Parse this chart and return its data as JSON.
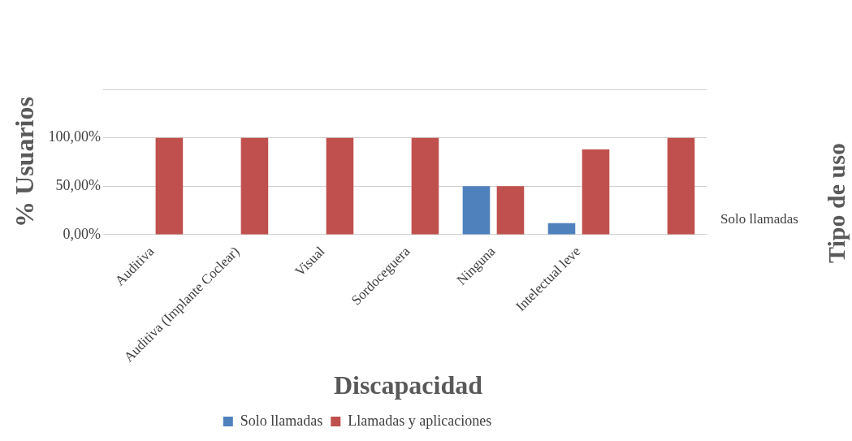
{
  "chart_data": {
    "type": "bar",
    "xlabel": "Discapacidad",
    "ylabel": "% Usuarios",
    "categories": [
      "Auditiva",
      "Auditiva (Implante Coclear)",
      "Visual",
      "Sordoceguera",
      "Ninguna",
      "Intelectual leve",
      null
    ],
    "series": [
      {
        "name": "Solo llamadas",
        "color": "#4f81bd",
        "values": [
          0,
          0,
          0,
          0,
          50,
          12,
          0
        ]
      },
      {
        "name": "Llamadas y aplicaciones",
        "color": "#c0504d",
        "values": [
          100,
          100,
          100,
          100,
          50,
          88,
          100
        ]
      }
    ],
    "ylim": [
      0,
      150
    ],
    "yticks": [
      {
        "value": 0,
        "label": "0,00%"
      },
      {
        "value": 50,
        "label": "50,00%"
      },
      {
        "value": 100,
        "label": "100,00%"
      },
      {
        "value": 150,
        "label": null
      }
    ],
    "grid": "y",
    "legend": "bottom",
    "annotations": [
      "Solo llamadas",
      "Tipo de uso"
    ]
  }
}
